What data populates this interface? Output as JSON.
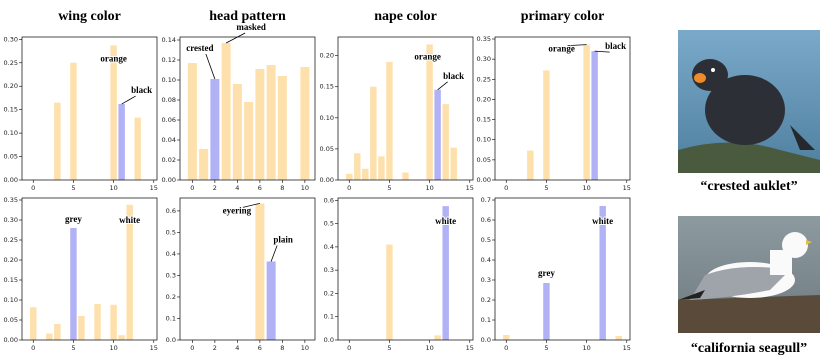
{
  "chart_data": [
    {
      "type": "bar",
      "title": "wing color",
      "x": [
        3,
        5,
        10,
        11,
        13
      ],
      "values": [
        0.165,
        0.25,
        0.287,
        0.162,
        0.133
      ],
      "colors": [
        "#fde0ac",
        "#fde0ac",
        "#fde0ac",
        "#b1b1f5",
        "#fde0ac"
      ],
      "bar_labels": [
        null,
        null,
        "orange",
        "black",
        null
      ],
      "xlim": [
        -1.4,
        15.4
      ],
      "xticks": [
        0,
        5,
        10,
        15
      ],
      "ylim": [
        0,
        0.305
      ],
      "yticks": [
        {
          "value": 0,
          "label": "0.00"
        },
        {
          "value": 0.05,
          "label": "0.05"
        },
        {
          "value": 0.1,
          "label": "0.10"
        },
        {
          "value": 0.15,
          "label": "0.15"
        },
        {
          "value": 0.2,
          "label": "0.20"
        },
        {
          "value": 0.25,
          "label": "0.25"
        },
        {
          "value": 0.3,
          "label": "0.30"
        }
      ]
    },
    {
      "type": "bar",
      "title": "head pattern",
      "x": [
        0,
        1,
        2,
        3,
        4,
        5,
        6,
        7,
        8,
        10
      ],
      "values": [
        0.117,
        0.031,
        0.101,
        0.137,
        0.096,
        0.078,
        0.111,
        0.115,
        0.104,
        0.113
      ],
      "colors": [
        "#fde0ac",
        "#fde0ac",
        "#b1b1f5",
        "#fde0ac",
        "#fde0ac",
        "#fde0ac",
        "#fde0ac",
        "#fde0ac",
        "#fde0ac",
        "#fde0ac"
      ],
      "bar_labels": [
        null,
        null,
        "crested",
        "masked",
        null,
        null,
        null,
        null,
        null,
        null
      ],
      "xlim": [
        -1.1,
        10.9
      ],
      "xticks": [
        0,
        2,
        4,
        6,
        8,
        10
      ],
      "ylim": [
        0,
        0.143
      ],
      "yticks": [
        {
          "value": 0,
          "label": "0.00"
        },
        {
          "value": 0.02,
          "label": "0.02"
        },
        {
          "value": 0.04,
          "label": "0.04"
        },
        {
          "value": 0.06,
          "label": "0.06"
        },
        {
          "value": 0.08,
          "label": "0.08"
        },
        {
          "value": 0.1,
          "label": "0.10"
        },
        {
          "value": 0.12,
          "label": "0.12"
        },
        {
          "value": 0.14,
          "label": "0.14"
        }
      ]
    },
    {
      "type": "bar",
      "title": "nape color",
      "x": [
        0,
        1,
        2,
        3,
        4,
        5,
        7,
        10,
        11,
        12,
        13
      ],
      "values": [
        0.01,
        0.043,
        0.018,
        0.15,
        0.038,
        0.19,
        0.012,
        0.218,
        0.145,
        0.122,
        0.052
      ],
      "colors": [
        "#fde0ac",
        "#fde0ac",
        "#fde0ac",
        "#fde0ac",
        "#fde0ac",
        "#fde0ac",
        "#fde0ac",
        "#fde0ac",
        "#b1b1f5",
        "#fde0ac",
        "#fde0ac"
      ],
      "bar_labels": [
        null,
        null,
        null,
        null,
        null,
        null,
        null,
        "orange",
        "black",
        null,
        null
      ],
      "xlim": [
        -1.4,
        15.4
      ],
      "xticks": [
        0,
        5,
        10,
        15
      ],
      "ylim": [
        0,
        0.23
      ],
      "yticks": [
        {
          "value": 0,
          "label": "0.00"
        },
        {
          "value": 0.05,
          "label": "0.05"
        },
        {
          "value": 0.1,
          "label": "0.10"
        },
        {
          "value": 0.15,
          "label": "0.15"
        },
        {
          "value": 0.2,
          "label": "0.20"
        }
      ]
    },
    {
      "type": "bar",
      "title": "primary color",
      "x": [
        3,
        5,
        10,
        11
      ],
      "values": [
        0.073,
        0.272,
        0.336,
        0.32
      ],
      "colors": [
        "#fde0ac",
        "#fde0ac",
        "#fde0ac",
        "#b1b1f5"
      ],
      "bar_labels": [
        null,
        null,
        "orange",
        "black"
      ],
      "xlim": [
        -1.4,
        15.4
      ],
      "xticks": [
        0,
        5,
        10,
        15
      ],
      "ylim": [
        0,
        0.355
      ],
      "yticks": [
        {
          "value": 0,
          "label": "0.00"
        },
        {
          "value": 0.05,
          "label": "0.05"
        },
        {
          "value": 0.1,
          "label": "0.10"
        },
        {
          "value": 0.15,
          "label": "0.15"
        },
        {
          "value": 0.2,
          "label": "0.20"
        },
        {
          "value": 0.25,
          "label": "0.25"
        },
        {
          "value": 0.3,
          "label": "0.30"
        },
        {
          "value": 0.35,
          "label": "0.35"
        }
      ]
    },
    {
      "type": "bar",
      "x": [
        0,
        2,
        3,
        5,
        6,
        8,
        10,
        11,
        12
      ],
      "values": [
        0.082,
        0.016,
        0.04,
        0.28,
        0.06,
        0.09,
        0.088,
        0.012,
        0.338
      ],
      "colors": [
        "#fde0ac",
        "#fde0ac",
        "#fde0ac",
        "#b1b1f5",
        "#fde0ac",
        "#fde0ac",
        "#fde0ac",
        "#fde0ac",
        "#fde0ac"
      ],
      "bar_labels": [
        null,
        null,
        null,
        "grey",
        null,
        null,
        null,
        null,
        "white"
      ],
      "xlim": [
        -1.4,
        15.4
      ],
      "xticks": [
        0,
        5,
        10,
        15
      ],
      "ylim": [
        0,
        0.355
      ],
      "yticks": [
        {
          "value": 0,
          "label": "0.00"
        },
        {
          "value": 0.05,
          "label": "0.05"
        },
        {
          "value": 0.1,
          "label": "0.10"
        },
        {
          "value": 0.15,
          "label": "0.15"
        },
        {
          "value": 0.2,
          "label": "0.20"
        },
        {
          "value": 0.25,
          "label": "0.25"
        },
        {
          "value": 0.3,
          "label": "0.30"
        },
        {
          "value": 0.35,
          "label": "0.35"
        }
      ]
    },
    {
      "type": "bar",
      "x": [
        6,
        7
      ],
      "values": [
        0.635,
        0.365
      ],
      "colors": [
        "#fde0ac",
        "#b1b1f5"
      ],
      "bar_labels": [
        "eyering",
        "plain"
      ],
      "xlim": [
        -1.1,
        10.9
      ],
      "xticks": [
        0,
        2,
        4,
        6,
        8,
        10
      ],
      "ylim": [
        0,
        0.66
      ],
      "yticks": [
        {
          "value": 0,
          "label": "0.0"
        },
        {
          "value": 0.1,
          "label": "0.1"
        },
        {
          "value": 0.2,
          "label": "0.2"
        },
        {
          "value": 0.3,
          "label": "0.3"
        },
        {
          "value": 0.4,
          "label": "0.4"
        },
        {
          "value": 0.5,
          "label": "0.5"
        },
        {
          "value": 0.6,
          "label": "0.6"
        }
      ]
    },
    {
      "type": "bar",
      "x": [
        5,
        11,
        12
      ],
      "values": [
        0.41,
        0.02,
        0.575
      ],
      "colors": [
        "#fde0ac",
        "#fde0ac",
        "#b1b1f5"
      ],
      "bar_labels": [
        null,
        null,
        "white"
      ],
      "xlim": [
        -1.4,
        15.4
      ],
      "xticks": [
        0,
        5,
        10,
        15
      ],
      "ylim": [
        0,
        0.61
      ],
      "yticks": [
        {
          "value": 0,
          "label": "0.0"
        },
        {
          "value": 0.1,
          "label": "0.1"
        },
        {
          "value": 0.2,
          "label": "0.2"
        },
        {
          "value": 0.3,
          "label": "0.3"
        },
        {
          "value": 0.4,
          "label": "0.4"
        },
        {
          "value": 0.5,
          "label": "0.5"
        },
        {
          "value": 0.6,
          "label": "0.6"
        }
      ]
    },
    {
      "type": "bar",
      "x": [
        0,
        5,
        12,
        14
      ],
      "values": [
        0.025,
        0.285,
        0.67,
        0.02
      ],
      "colors": [
        "#fde0ac",
        "#b1b1f5",
        "#b1b1f5",
        "#fde0ac"
      ],
      "bar_labels": [
        null,
        "grey",
        "white",
        null
      ],
      "xlim": [
        -1.4,
        15.4
      ],
      "xticks": [
        0,
        5,
        10,
        15
      ],
      "ylim": [
        0,
        0.71
      ],
      "yticks": [
        {
          "value": 0,
          "label": "0.0"
        },
        {
          "value": 0.1,
          "label": "0.1"
        },
        {
          "value": 0.2,
          "label": "0.2"
        },
        {
          "value": 0.3,
          "label": "0.3"
        },
        {
          "value": 0.4,
          "label": "0.4"
        },
        {
          "value": 0.5,
          "label": "0.5"
        },
        {
          "value": 0.6,
          "label": "0.6"
        },
        {
          "value": 0.7,
          "label": "0.7"
        }
      ]
    }
  ],
  "images": [
    {
      "caption": "“crested auklet”"
    },
    {
      "caption": "“california seagull”"
    }
  ]
}
